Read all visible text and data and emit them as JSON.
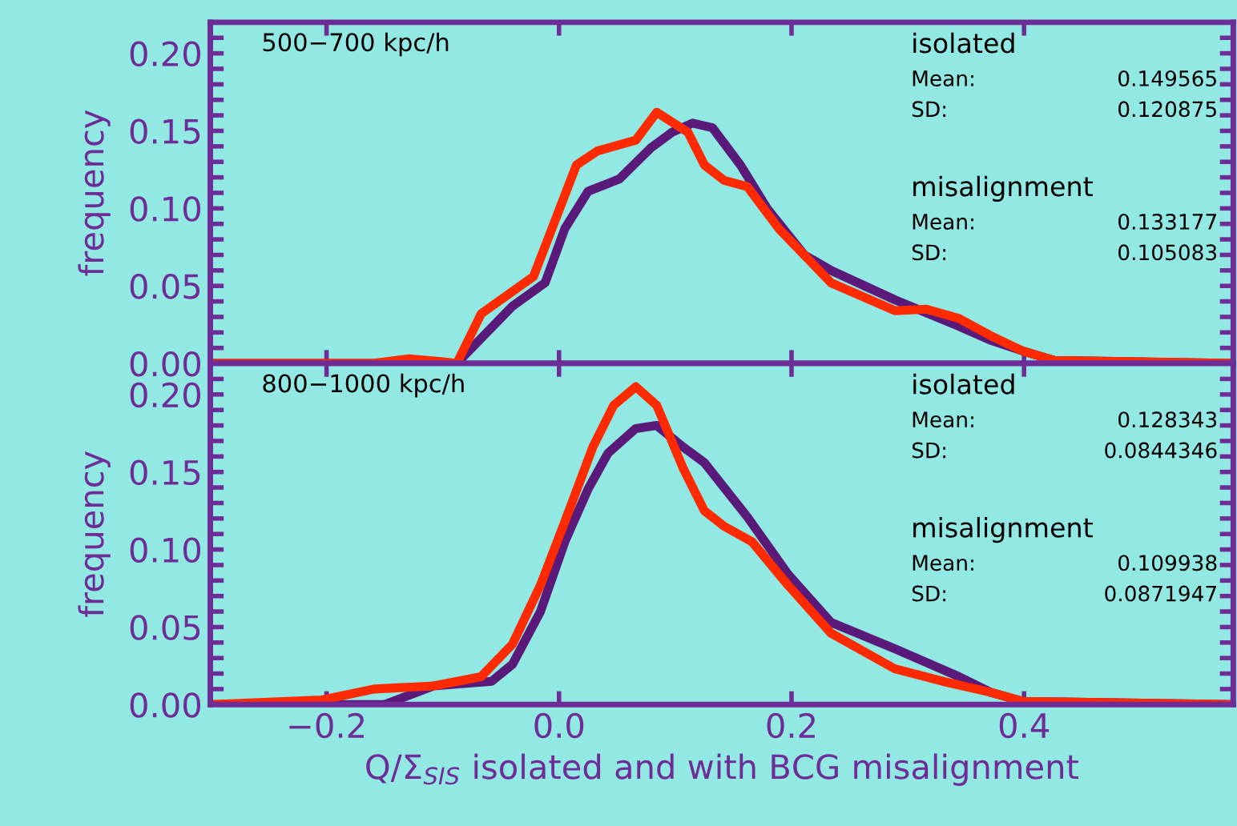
{
  "chart_data": [
    {
      "type": "line",
      "title": "500−700 kpc/h",
      "ylabel": "frequency",
      "xlim": [
        -0.3,
        0.58
      ],
      "ylim": [
        0,
        0.22
      ],
      "xticks": [
        {
          "value": -0.2,
          "label": null
        },
        {
          "value": 0.0,
          "label": null
        },
        {
          "value": 0.2,
          "label": null
        },
        {
          "value": 0.4,
          "label": null
        }
      ],
      "yticks": [
        {
          "value": 0.0,
          "label": "0.00"
        },
        {
          "value": 0.01,
          "label": null
        },
        {
          "value": 0.02,
          "label": null
        },
        {
          "value": 0.03,
          "label": null
        },
        {
          "value": 0.04,
          "label": null
        },
        {
          "value": 0.05,
          "label": "0.05"
        },
        {
          "value": 0.06,
          "label": null
        },
        {
          "value": 0.07,
          "label": null
        },
        {
          "value": 0.08,
          "label": null
        },
        {
          "value": 0.09,
          "label": null
        },
        {
          "value": 0.1,
          "label": "0.10"
        },
        {
          "value": 0.11,
          "label": null
        },
        {
          "value": 0.12,
          "label": null
        },
        {
          "value": 0.13,
          "label": null
        },
        {
          "value": 0.14,
          "label": null
        },
        {
          "value": 0.15,
          "label": "0.15"
        },
        {
          "value": 0.16,
          "label": null
        },
        {
          "value": 0.17,
          "label": null
        },
        {
          "value": 0.18,
          "label": null
        },
        {
          "value": 0.19,
          "label": null
        },
        {
          "value": 0.2,
          "label": "0.20"
        },
        {
          "value": 0.21,
          "label": null
        }
      ],
      "tick_labels": "y",
      "grid": false,
      "legend": false,
      "marker": "none",
      "line_style": "solid",
      "annotations": [
        "isolated",
        "Mean:",
        "0.149565",
        "SD:",
        "0.120875",
        "misalignment",
        "Mean:",
        "0.133177",
        "SD:",
        "0.105083"
      ],
      "series": [
        {
          "color": "#5a1a7a",
          "x": [
            -0.3,
            -0.088,
            -0.04,
            -0.012,
            0.005,
            0.025,
            0.052,
            0.079,
            0.097,
            0.115,
            0.132,
            0.156,
            0.179,
            0.211,
            0.234,
            0.289,
            0.344,
            0.371,
            0.399,
            0.426,
            0.58
          ],
          "values": [
            0,
            0,
            0.037,
            0.052,
            0.087,
            0.111,
            0.119,
            0.139,
            0.149,
            0.155,
            0.152,
            0.128,
            0.1,
            0.07,
            0.06,
            0.041,
            0.024,
            0.015,
            0.008,
            0.002,
            0
          ]
        },
        {
          "color": "#ff2a00",
          "x": [
            -0.3,
            -0.16,
            -0.129,
            -0.1,
            -0.088,
            -0.067,
            -0.022,
            -0.003,
            0.015,
            0.033,
            0.066,
            0.084,
            0.111,
            0.125,
            0.142,
            0.162,
            0.189,
            0.234,
            0.289,
            0.316,
            0.344,
            0.371,
            0.399,
            0.426,
            0.58
          ],
          "values": [
            0,
            0,
            0.003,
            0.001,
            0,
            0.032,
            0.056,
            0.093,
            0.128,
            0.137,
            0.144,
            0.162,
            0.149,
            0.128,
            0.118,
            0.114,
            0.087,
            0.052,
            0.034,
            0.035,
            0.029,
            0.018,
            0.008,
            0.002,
            0
          ]
        }
      ]
    },
    {
      "type": "line",
      "title": "800−1000 kpc/h",
      "ylabel": "frequency",
      "xlabel": "Q/Σ$_{SIS}$ isolated and with BCG misalignment",
      "xlim": [
        -0.3,
        0.58
      ],
      "ylim": [
        0,
        0.22
      ],
      "xticks": [
        {
          "value": -0.2,
          "label": "−0.2"
        },
        {
          "value": 0.0,
          "label": "0.0"
        },
        {
          "value": 0.2,
          "label": "0.2"
        },
        {
          "value": 0.4,
          "label": "0.4"
        }
      ],
      "yticks": [
        {
          "value": 0.0,
          "label": "0.00"
        },
        {
          "value": 0.01,
          "label": null
        },
        {
          "value": 0.02,
          "label": null
        },
        {
          "value": 0.03,
          "label": null
        },
        {
          "value": 0.04,
          "label": null
        },
        {
          "value": 0.05,
          "label": "0.05"
        },
        {
          "value": 0.06,
          "label": null
        },
        {
          "value": 0.07,
          "label": null
        },
        {
          "value": 0.08,
          "label": null
        },
        {
          "value": 0.09,
          "label": null
        },
        {
          "value": 0.1,
          "label": "0.10"
        },
        {
          "value": 0.11,
          "label": null
        },
        {
          "value": 0.12,
          "label": null
        },
        {
          "value": 0.13,
          "label": null
        },
        {
          "value": 0.14,
          "label": null
        },
        {
          "value": 0.15,
          "label": "0.15"
        },
        {
          "value": 0.16,
          "label": null
        },
        {
          "value": 0.17,
          "label": null
        },
        {
          "value": 0.18,
          "label": null
        },
        {
          "value": 0.19,
          "label": null
        },
        {
          "value": 0.2,
          "label": "0.20"
        },
        {
          "value": 0.21,
          "label": null
        }
      ],
      "grid": false,
      "legend": false,
      "marker": "none",
      "line_style": "solid",
      "annotations": [
        "isolated",
        "Mean:",
        "0.128343",
        "SD:",
        "0.0844346",
        "misalignment",
        "Mean:",
        "0.109938",
        "SD:",
        "0.0871947"
      ],
      "series": [
        {
          "color": "#5a1a7a",
          "x": [
            -0.3,
            -0.15,
            -0.108,
            -0.058,
            -0.04,
            -0.016,
            0.005,
            0.025,
            0.042,
            0.066,
            0.084,
            0.107,
            0.125,
            0.162,
            0.197,
            0.234,
            0.289,
            0.344,
            0.371,
            0.399,
            0.58
          ],
          "values": [
            0,
            0,
            0.012,
            0.015,
            0.026,
            0.06,
            0.105,
            0.139,
            0.162,
            0.178,
            0.18,
            0.166,
            0.156,
            0.121,
            0.084,
            0.053,
            0.036,
            0.018,
            0.008,
            0.002,
            0
          ]
        },
        {
          "color": "#ff2a00",
          "x": [
            -0.3,
            -0.204,
            -0.159,
            -0.108,
            -0.067,
            -0.04,
            -0.016,
            0.005,
            0.029,
            0.047,
            0.066,
            0.084,
            0.107,
            0.125,
            0.142,
            0.166,
            0.197,
            0.234,
            0.289,
            0.33,
            0.371,
            0.399,
            0.58
          ],
          "values": [
            0,
            0.003,
            0.01,
            0.012,
            0.018,
            0.039,
            0.077,
            0.118,
            0.166,
            0.193,
            0.205,
            0.193,
            0.152,
            0.125,
            0.115,
            0.105,
            0.077,
            0.046,
            0.023,
            0.015,
            0.008,
            0.002,
            0
          ]
        }
      ]
    }
  ]
}
